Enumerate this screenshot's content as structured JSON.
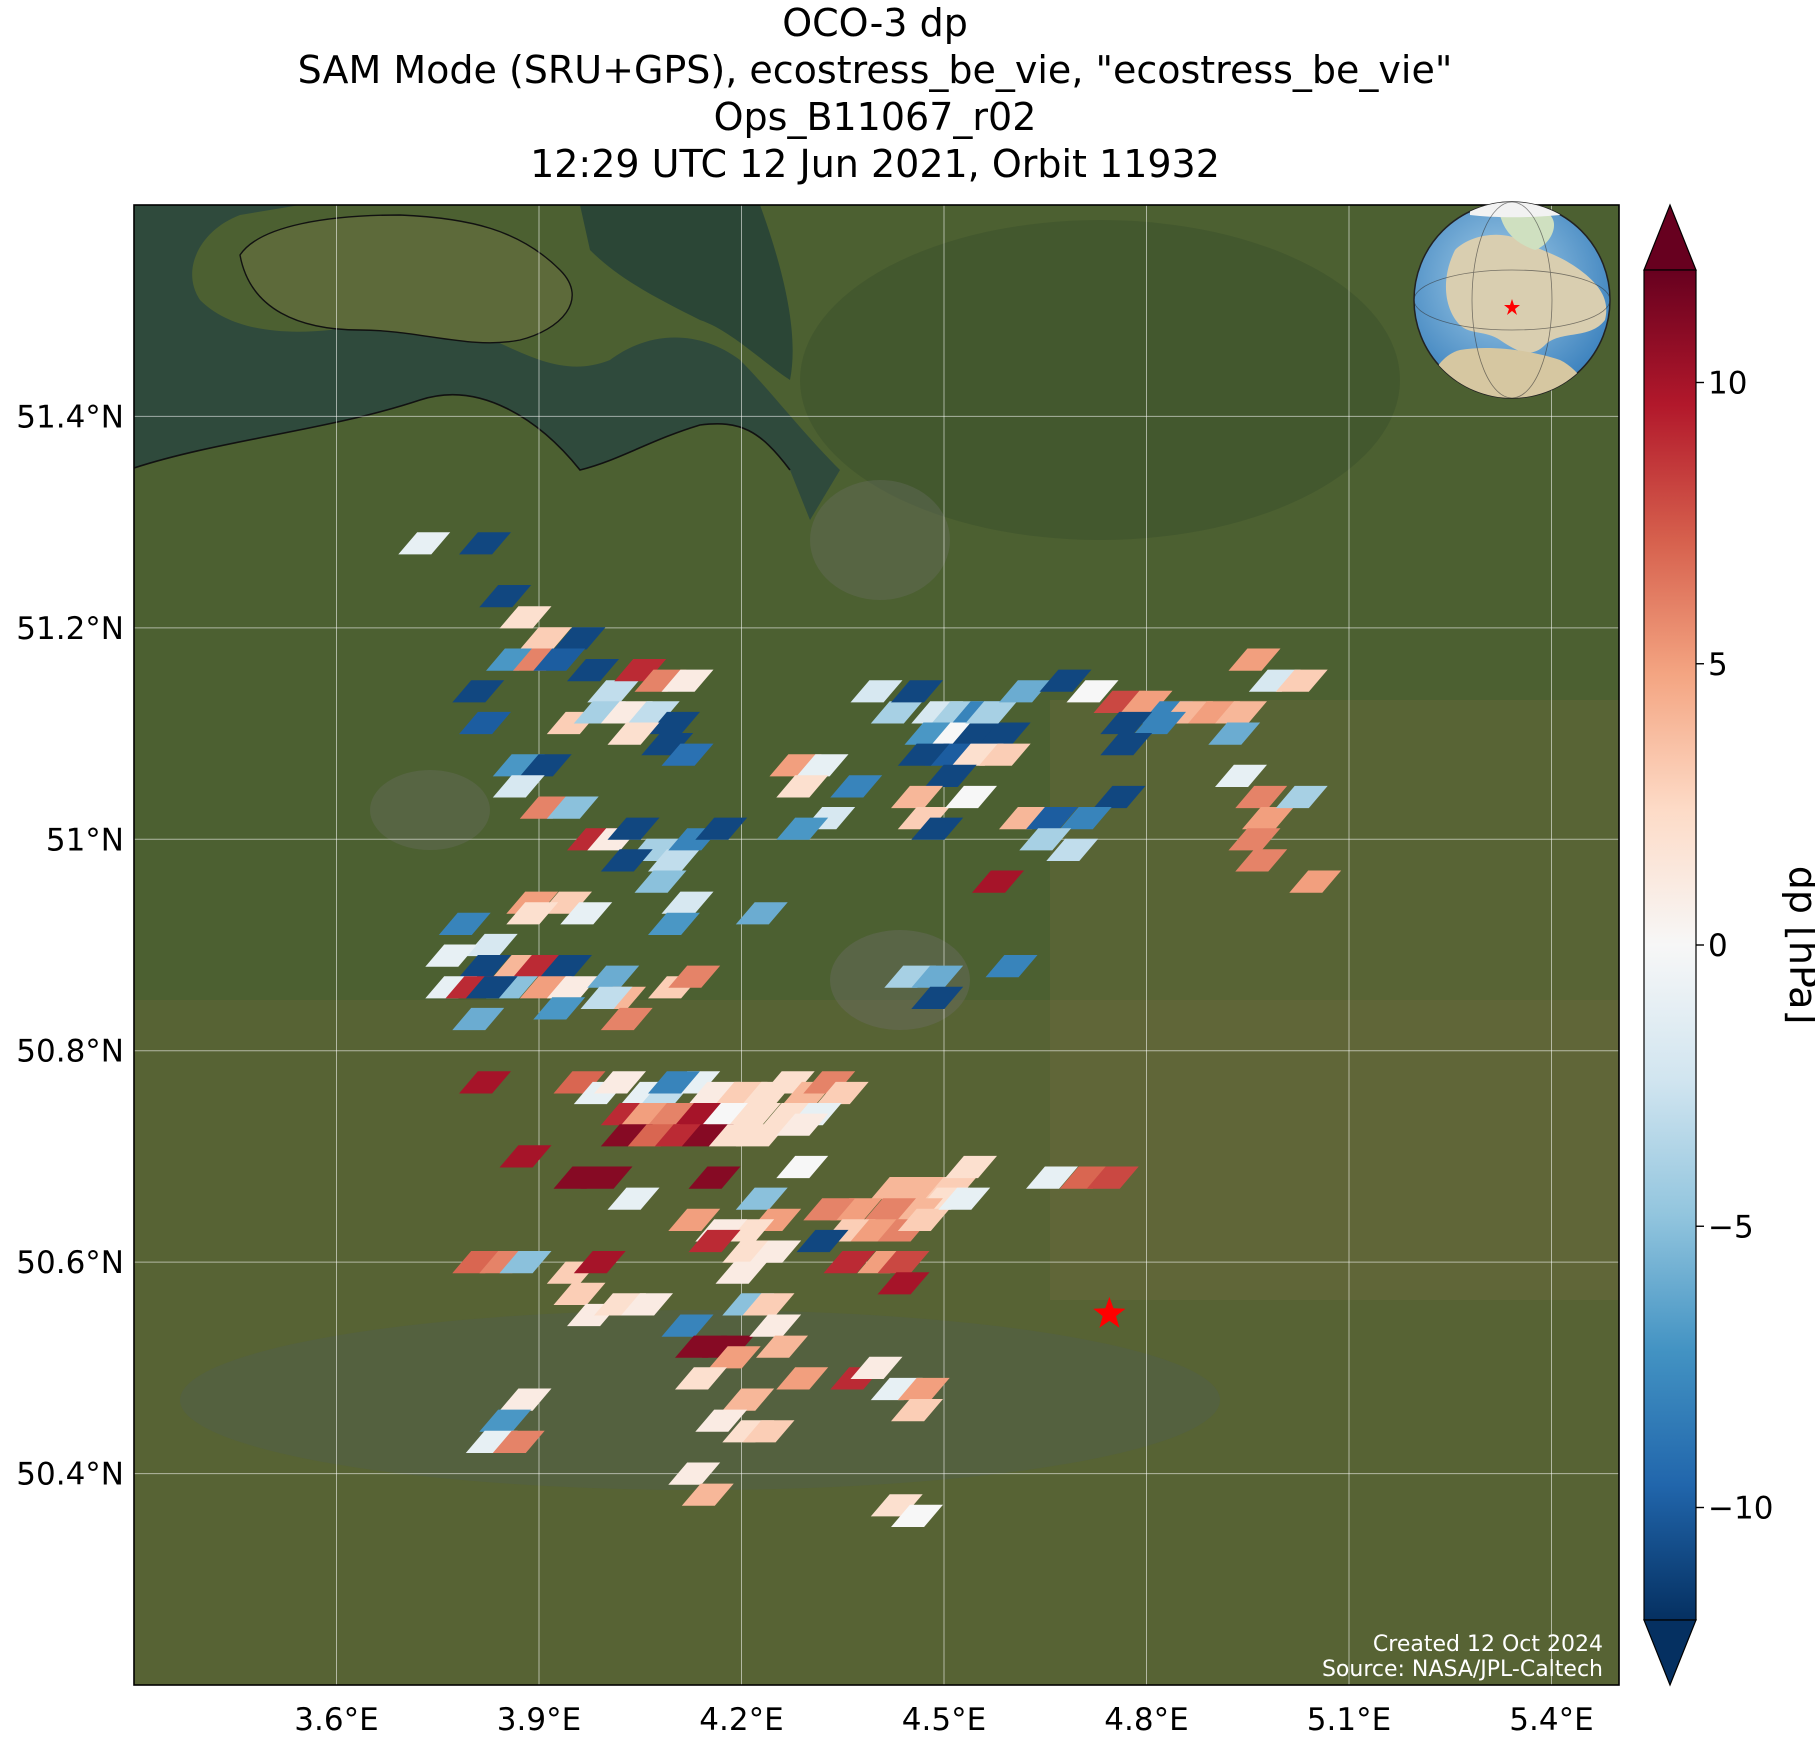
{
  "title": {
    "line1": "OCO-3 dp",
    "line2": "SAM Mode (SRU+GPS), ecostress_be_vie, \"ecostress_be_vie\"",
    "line3": "Ops_B11067_r02",
    "line4": "12:29 UTC 12 Jun 2021, Orbit 11932"
  },
  "colorbar": {
    "label": "dp [hPa]",
    "range": [
      -12,
      12
    ],
    "ticks": [
      10,
      5,
      0,
      -5,
      -10
    ],
    "tick_labels": [
      "10",
      "5",
      "0",
      "−5",
      "−10"
    ],
    "colormap": "RdBu_r",
    "extend": "both"
  },
  "credits": {
    "created": "Created 12 Oct 2024",
    "source": "Source: NASA/JPL-Caltech"
  },
  "map": {
    "lon_range": [
      3.3,
      5.5
    ],
    "lat_range": [
      50.2,
      51.6
    ],
    "lon_ticks": [
      3.6,
      3.9,
      4.2,
      4.5,
      4.8,
      5.1,
      5.4
    ],
    "lon_labels": [
      "3.6°E",
      "3.9°E",
      "4.2°E",
      "4.5°E",
      "4.8°E",
      "5.1°E",
      "5.4°E"
    ],
    "lat_ticks": [
      51.4,
      51.2,
      51.0,
      50.8,
      50.6,
      50.4
    ],
    "lat_labels": [
      "51.4°N",
      "51.2°N",
      "51°N",
      "50.8°N",
      "50.6°N",
      "50.4°N"
    ],
    "target": {
      "lon": 4.745,
      "lat": 50.551
    },
    "background": "satellite-imagery",
    "gridlines": true,
    "inset": "globe-locator"
  },
  "soundings": [
    [
      3.73,
      51.28,
      -1
    ],
    [
      3.82,
      51.28,
      -11
    ],
    [
      3.85,
      51.23,
      -11
    ],
    [
      3.88,
      51.21,
      2
    ],
    [
      3.91,
      51.19,
      3
    ],
    [
      3.96,
      51.19,
      -11
    ],
    [
      3.86,
      51.17,
      -7
    ],
    [
      3.9,
      51.17,
      6
    ],
    [
      3.93,
      51.17,
      -10
    ],
    [
      3.98,
      51.16,
      -11
    ],
    [
      4.01,
      51.14,
      -3
    ],
    [
      4.05,
      51.16,
      9
    ],
    [
      4.08,
      51.15,
      6
    ],
    [
      4.12,
      51.15,
      1
    ],
    [
      3.81,
      51.14,
      -11
    ],
    [
      3.82,
      51.11,
      -10
    ],
    [
      3.95,
      51.11,
      3
    ],
    [
      3.99,
      51.12,
      -4
    ],
    [
      4.03,
      51.12,
      1
    ],
    [
      4.07,
      51.12,
      -3
    ],
    [
      4.1,
      51.11,
      -11
    ],
    [
      4.04,
      51.1,
      2
    ],
    [
      4.09,
      51.09,
      -11
    ],
    [
      4.12,
      51.08,
      -9
    ],
    [
      3.87,
      51.07,
      -7
    ],
    [
      3.91,
      51.07,
      -11
    ],
    [
      3.87,
      51.05,
      -2
    ],
    [
      3.91,
      51.03,
      6
    ],
    [
      3.95,
      51.03,
      -5
    ],
    [
      3.98,
      51.0,
      9
    ],
    [
      4.01,
      51.0,
      1
    ],
    [
      4.04,
      51.01,
      -11
    ],
    [
      4.07,
      50.99,
      -4
    ],
    [
      4.1,
      50.98,
      -3
    ],
    [
      4.13,
      51.0,
      -8
    ],
    [
      4.17,
      51.01,
      -11
    ],
    [
      4.03,
      50.98,
      -11
    ],
    [
      4.08,
      50.96,
      -5
    ],
    [
      4.12,
      50.94,
      -2
    ],
    [
      4.1,
      50.92,
      -7
    ],
    [
      3.89,
      50.94,
      5
    ],
    [
      3.94,
      50.94,
      3
    ],
    [
      3.89,
      50.93,
      2
    ],
    [
      3.97,
      50.93,
      -1
    ],
    [
      3.79,
      50.92,
      -8
    ],
    [
      3.83,
      50.9,
      -2
    ],
    [
      3.77,
      50.89,
      -1
    ],
    [
      3.82,
      50.88,
      -11
    ],
    [
      3.87,
      50.88,
      4
    ],
    [
      3.9,
      50.88,
      9
    ],
    [
      3.94,
      50.88,
      -11
    ],
    [
      3.86,
      50.86,
      -5
    ],
    [
      3.91,
      50.86,
      5
    ],
    [
      3.95,
      50.86,
      1
    ],
    [
      3.77,
      50.86,
      -1
    ],
    [
      3.8,
      50.86,
      9
    ],
    [
      3.83,
      50.86,
      -11
    ],
    [
      3.81,
      50.83,
      -6
    ],
    [
      3.93,
      50.84,
      -7
    ],
    [
      4.01,
      50.87,
      -6
    ],
    [
      4.02,
      50.85,
      4
    ],
    [
      4.0,
      50.85,
      -3
    ],
    [
      4.03,
      50.83,
      6
    ],
    [
      4.1,
      50.86,
      3
    ],
    [
      4.13,
      50.87,
      6
    ],
    [
      4.23,
      50.93,
      -6
    ],
    [
      4.28,
      51.07,
      5
    ],
    [
      4.32,
      51.07,
      -1
    ],
    [
      4.29,
      51.05,
      2
    ],
    [
      4.37,
      51.05,
      -8
    ],
    [
      4.33,
      51.02,
      -2
    ],
    [
      4.29,
      51.01,
      -7
    ],
    [
      4.4,
      51.14,
      -2
    ],
    [
      4.43,
      51.12,
      -4
    ],
    [
      4.46,
      51.14,
      -11
    ],
    [
      4.49,
      51.12,
      -2
    ],
    [
      4.52,
      51.12,
      -4
    ],
    [
      4.55,
      51.12,
      -8
    ],
    [
      4.48,
      51.1,
      -7
    ],
    [
      4.52,
      51.1,
      0
    ],
    [
      4.55,
      51.1,
      -11
    ],
    [
      4.59,
      51.1,
      -11
    ],
    [
      4.51,
      51.08,
      -10
    ],
    [
      4.55,
      51.08,
      2
    ],
    [
      4.59,
      51.08,
      3
    ],
    [
      4.47,
      51.08,
      -11
    ],
    [
      4.51,
      51.06,
      -11
    ],
    [
      4.57,
      51.12,
      -4
    ],
    [
      4.62,
      51.14,
      -6
    ],
    [
      4.68,
      51.15,
      -11
    ],
    [
      4.72,
      51.14,
      0
    ],
    [
      4.76,
      51.13,
      8
    ],
    [
      4.8,
      51.13,
      5
    ],
    [
      4.83,
      51.12,
      -8
    ],
    [
      4.86,
      51.12,
      4
    ],
    [
      4.9,
      51.12,
      5
    ],
    [
      4.94,
      51.12,
      4
    ],
    [
      4.77,
      51.11,
      -11
    ],
    [
      4.82,
      51.11,
      -8
    ],
    [
      4.93,
      51.1,
      -6
    ],
    [
      4.96,
      51.17,
      5
    ],
    [
      4.99,
      51.15,
      -2
    ],
    [
      5.03,
      51.15,
      3
    ],
    [
      4.77,
      51.09,
      -11
    ],
    [
      4.76,
      51.04,
      -11
    ],
    [
      4.94,
      51.06,
      -1
    ],
    [
      4.97,
      51.04,
      6
    ],
    [
      4.98,
      51.02,
      5
    ],
    [
      4.96,
      51.0,
      6
    ],
    [
      4.97,
      50.98,
      6
    ],
    [
      5.03,
      51.04,
      -4
    ],
    [
      5.05,
      50.96,
      5
    ],
    [
      4.46,
      51.04,
      4
    ],
    [
      4.47,
      51.02,
      3
    ],
    [
      4.49,
      51.01,
      -11
    ],
    [
      4.54,
      51.04,
      0
    ],
    [
      4.62,
      51.02,
      4
    ],
    [
      4.66,
      51.02,
      -10
    ],
    [
      4.71,
      51.02,
      -8
    ],
    [
      4.65,
      51.0,
      -4
    ],
    [
      4.69,
      50.99,
      -3
    ],
    [
      4.58,
      50.96,
      10
    ],
    [
      4.6,
      50.88,
      -8
    ],
    [
      4.45,
      50.87,
      -4
    ],
    [
      4.49,
      50.87,
      -6
    ],
    [
      4.49,
      50.85,
      -11
    ],
    [
      3.82,
      50.77,
      10
    ],
    [
      3.96,
      50.77,
      7
    ],
    [
      3.99,
      50.76,
      -1
    ],
    [
      4.02,
      50.77,
      1
    ],
    [
      4.06,
      50.76,
      -1
    ],
    [
      4.09,
      50.76,
      -3
    ],
    [
      4.13,
      50.77,
      -1
    ],
    [
      4.1,
      50.77,
      -8
    ],
    [
      4.16,
      50.76,
      1
    ],
    [
      4.2,
      50.76,
      3
    ],
    [
      4.24,
      50.76,
      2
    ],
    [
      4.27,
      50.77,
      2
    ],
    [
      4.3,
      50.76,
      4
    ],
    [
      4.33,
      50.77,
      6
    ],
    [
      4.35,
      50.76,
      3
    ],
    [
      4.03,
      50.74,
      9
    ],
    [
      4.06,
      50.74,
      5
    ],
    [
      4.1,
      50.74,
      6
    ],
    [
      4.14,
      50.74,
      10
    ],
    [
      4.18,
      50.74,
      0
    ],
    [
      4.22,
      50.74,
      2
    ],
    [
      4.27,
      50.74,
      2
    ],
    [
      4.31,
      50.74,
      -1
    ],
    [
      4.03,
      50.72,
      11
    ],
    [
      4.07,
      50.72,
      7
    ],
    [
      4.11,
      50.72,
      9
    ],
    [
      4.15,
      50.72,
      11
    ],
    [
      4.19,
      50.72,
      2
    ],
    [
      4.23,
      50.72,
      2
    ],
    [
      4.29,
      50.73,
      1
    ],
    [
      3.88,
      50.7,
      10
    ],
    [
      3.96,
      50.68,
      11
    ],
    [
      4.0,
      50.68,
      11
    ],
    [
      4.16,
      50.68,
      11
    ],
    [
      4.29,
      50.69,
      0
    ],
    [
      4.43,
      50.67,
      4
    ],
    [
      4.47,
      50.67,
      4
    ],
    [
      4.51,
      50.67,
      3
    ],
    [
      4.54,
      50.69,
      2
    ],
    [
      4.5,
      50.66,
      2
    ],
    [
      4.46,
      50.65,
      4
    ],
    [
      4.42,
      50.65,
      6
    ],
    [
      4.37,
      50.65,
      5
    ],
    [
      4.33,
      50.65,
      6
    ],
    [
      4.36,
      50.63,
      3
    ],
    [
      4.4,
      50.63,
      5
    ],
    [
      4.44,
      50.63,
      6
    ],
    [
      4.47,
      50.64,
      3
    ],
    [
      4.53,
      50.66,
      -1
    ],
    [
      4.04,
      50.66,
      -1
    ],
    [
      4.23,
      50.66,
      -5
    ],
    [
      4.25,
      50.64,
      5
    ],
    [
      4.21,
      50.63,
      2
    ],
    [
      4.17,
      50.63,
      1
    ],
    [
      4.13,
      50.64,
      5
    ],
    [
      4.16,
      50.62,
      9
    ],
    [
      4.21,
      50.61,
      2
    ],
    [
      4.25,
      50.61,
      1
    ],
    [
      4.32,
      50.62,
      -11
    ],
    [
      4.36,
      50.6,
      9
    ],
    [
      4.41,
      50.6,
      5
    ],
    [
      4.44,
      50.6,
      8
    ],
    [
      4.44,
      50.58,
      10
    ],
    [
      4.66,
      50.68,
      -1
    ],
    [
      4.71,
      50.68,
      7
    ],
    [
      4.75,
      50.68,
      8
    ],
    [
      3.81,
      50.6,
      7
    ],
    [
      3.85,
      50.6,
      6
    ],
    [
      3.88,
      50.6,
      -5
    ],
    [
      3.95,
      50.59,
      3
    ],
    [
      3.99,
      50.6,
      10
    ],
    [
      3.96,
      50.57,
      3
    ],
    [
      3.98,
      50.55,
      1
    ],
    [
      4.02,
      50.56,
      2
    ],
    [
      4.06,
      50.56,
      1
    ],
    [
      4.12,
      50.54,
      -8
    ],
    [
      4.14,
      50.52,
      11
    ],
    [
      4.18,
      50.52,
      11
    ],
    [
      4.2,
      50.59,
      1
    ],
    [
      4.21,
      50.56,
      -5
    ],
    [
      4.24,
      50.56,
      3
    ],
    [
      4.25,
      50.54,
      1
    ],
    [
      4.19,
      50.51,
      5
    ],
    [
      4.14,
      50.49,
      2
    ],
    [
      4.26,
      50.52,
      4
    ],
    [
      4.29,
      50.49,
      5
    ],
    [
      4.37,
      50.49,
      9
    ],
    [
      4.4,
      50.5,
      1
    ],
    [
      4.43,
      50.48,
      -1
    ],
    [
      4.47,
      50.48,
      5
    ],
    [
      4.46,
      50.46,
      3
    ],
    [
      3.88,
      50.47,
      1
    ],
    [
      3.85,
      50.45,
      -7
    ],
    [
      3.83,
      50.43,
      -1
    ],
    [
      3.87,
      50.43,
      6
    ],
    [
      4.21,
      50.47,
      4
    ],
    [
      4.17,
      50.45,
      1
    ],
    [
      4.21,
      50.44,
      2
    ],
    [
      4.24,
      50.44,
      3
    ],
    [
      4.13,
      50.4,
      1
    ],
    [
      4.15,
      50.38,
      4
    ],
    [
      4.43,
      50.37,
      2
    ],
    [
      4.46,
      50.36,
      0
    ]
  ]
}
